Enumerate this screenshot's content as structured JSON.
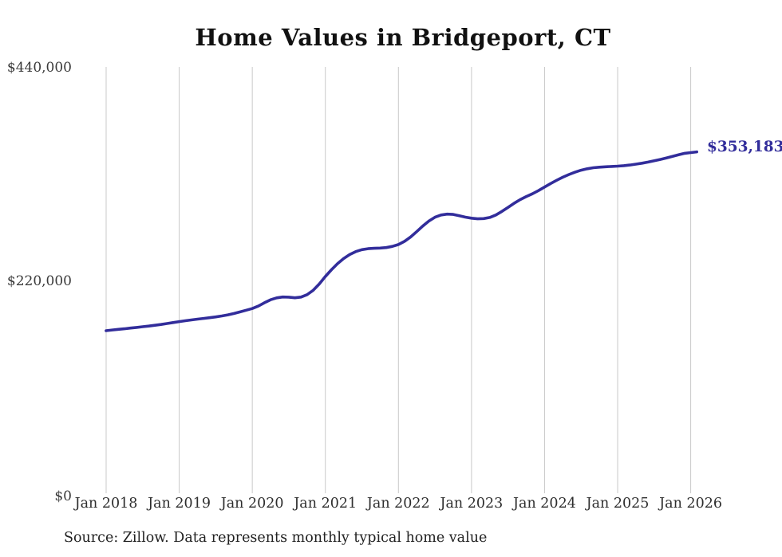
{
  "title": "Home Values in Bridgeport, CT",
  "source_note": "Source: Zillow. Data represents monthly typical home value",
  "chart_data": {
    "type": "line",
    "title": "Home Values in Bridgeport, CT",
    "series_name": "Monthly typical home value",
    "x_unit": "month",
    "x": [
      "2018-01",
      "2018-02",
      "2018-03",
      "2018-04",
      "2018-05",
      "2018-06",
      "2018-07",
      "2018-08",
      "2018-09",
      "2018-10",
      "2018-11",
      "2018-12",
      "2019-01",
      "2019-02",
      "2019-03",
      "2019-04",
      "2019-05",
      "2019-06",
      "2019-07",
      "2019-08",
      "2019-09",
      "2019-10",
      "2019-11",
      "2019-12",
      "2020-01",
      "2020-02",
      "2020-03",
      "2020-04",
      "2020-05",
      "2020-06",
      "2020-07",
      "2020-08",
      "2020-09",
      "2020-10",
      "2020-11",
      "2020-12",
      "2021-01",
      "2021-02",
      "2021-03",
      "2021-04",
      "2021-05",
      "2021-06",
      "2021-07",
      "2021-08",
      "2021-09",
      "2021-10",
      "2021-11",
      "2021-12",
      "2022-01",
      "2022-02",
      "2022-03",
      "2022-04",
      "2022-05",
      "2022-06",
      "2022-07",
      "2022-08",
      "2022-09",
      "2022-10",
      "2022-11",
      "2022-12",
      "2023-01",
      "2023-02",
      "2023-03",
      "2023-04",
      "2023-05",
      "2023-06",
      "2023-07",
      "2023-08",
      "2023-09",
      "2023-10",
      "2023-11",
      "2023-12",
      "2024-01",
      "2024-02",
      "2024-03",
      "2024-04",
      "2024-05",
      "2024-06",
      "2024-07",
      "2024-08",
      "2024-09",
      "2024-10",
      "2024-11",
      "2024-12",
      "2025-01",
      "2025-02",
      "2025-03",
      "2025-04",
      "2025-05",
      "2025-06",
      "2025-07",
      "2025-08",
      "2025-09",
      "2025-10",
      "2025-11",
      "2025-12",
      "2026-01",
      "2026-02"
    ],
    "values": [
      168600,
      169300,
      170000,
      170600,
      171300,
      172000,
      172700,
      173400,
      174200,
      175000,
      176000,
      177000,
      178000,
      178900,
      179700,
      180500,
      181300,
      182000,
      182800,
      183800,
      185000,
      186400,
      188000,
      189700,
      191500,
      194000,
      197500,
      200500,
      202500,
      203400,
      203200,
      202600,
      203300,
      205800,
      210300,
      216800,
      224500,
      231500,
      237800,
      243000,
      247200,
      250300,
      252200,
      253200,
      253600,
      253900,
      254400,
      255600,
      257500,
      260800,
      265300,
      270800,
      276600,
      281800,
      285700,
      288000,
      288900,
      288600,
      287300,
      285800,
      284700,
      284100,
      284300,
      285500,
      288000,
      291700,
      295900,
      300100,
      303900,
      307100,
      309900,
      313200,
      316900,
      320500,
      323900,
      327000,
      329800,
      332200,
      334200,
      335700,
      336800,
      337400,
      337800,
      338100,
      338400,
      338900,
      339600,
      340500,
      341500,
      342600,
      343900,
      345300,
      346900,
      348500,
      350100,
      351700,
      352400,
      353183
    ],
    "latest_value": 353183,
    "end_label": "$353,183",
    "x_tick_labels": [
      "Jan 2018",
      "Jan 2019",
      "Jan 2020",
      "Jan 2021",
      "Jan 2022",
      "Jan 2023",
      "Jan 2024",
      "Jan 2025",
      "Jan 2026"
    ],
    "y_tick_labels": [
      "$0",
      "$220,000",
      "$440,000"
    ],
    "ylim": [
      0,
      440000
    ],
    "months_per_gridline": 12,
    "grid": "vertical-only",
    "legend": "none",
    "line_color": "#322d9b",
    "gridline_color": "#c9c9c9"
  }
}
